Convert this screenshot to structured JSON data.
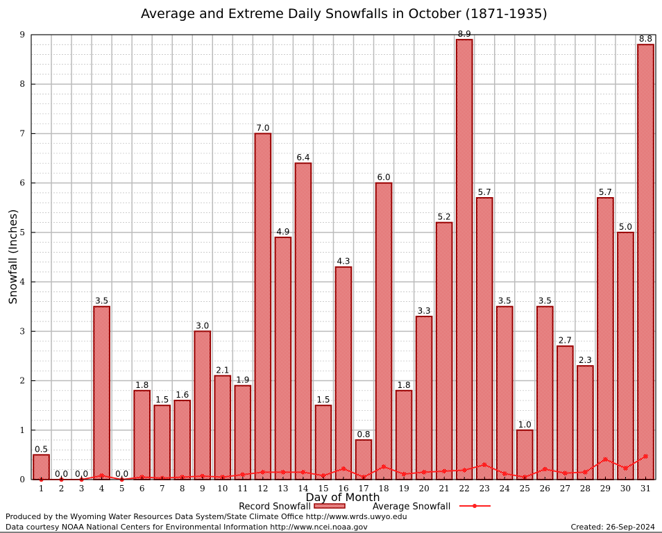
{
  "chart_data": {
    "type": "bar",
    "title": "Average and Extreme Daily Snowfalls in October (1871-1935)",
    "xlabel": "Day of Month",
    "ylabel": "Snowfall (Inches)",
    "ylim": [
      0,
      9
    ],
    "yticks": [
      "0",
      "1",
      "2",
      "3",
      "4",
      "5",
      "6",
      "7",
      "8",
      "9"
    ],
    "grid": true,
    "legend_position": "bottom",
    "categories": [
      "1",
      "2",
      "3",
      "4",
      "5",
      "6",
      "7",
      "8",
      "9",
      "10",
      "11",
      "12",
      "13",
      "14",
      "15",
      "16",
      "17",
      "18",
      "19",
      "20",
      "21",
      "22",
      "23",
      "24",
      "25",
      "26",
      "27",
      "28",
      "29",
      "30",
      "31"
    ],
    "series": [
      {
        "name": "Record Snowfall",
        "type": "bar",
        "color": "#cc0000",
        "values": [
          0.5,
          0.0,
          0.0,
          3.5,
          0.0,
          1.8,
          1.5,
          1.6,
          3.0,
          2.1,
          1.9,
          7.0,
          4.9,
          6.4,
          1.5,
          4.3,
          0.8,
          6.0,
          1.8,
          3.3,
          5.2,
          8.9,
          5.7,
          3.5,
          1.0,
          3.5,
          2.7,
          2.3,
          5.7,
          5.0,
          8.8
        ]
      },
      {
        "name": "Average Snowfall",
        "type": "line",
        "color": "#ff2020",
        "values": [
          0.0,
          0.0,
          0.0,
          0.08,
          0.0,
          0.05,
          0.03,
          0.05,
          0.07,
          0.05,
          0.1,
          0.15,
          0.15,
          0.15,
          0.08,
          0.22,
          0.05,
          0.26,
          0.11,
          0.15,
          0.17,
          0.19,
          0.3,
          0.12,
          0.05,
          0.21,
          0.13,
          0.15,
          0.41,
          0.23,
          0.47
        ]
      }
    ]
  },
  "footer": {
    "line1": "Produced by the Wyoming Water Resources Data System/State Climate Office http://www.wrds.uwyo.edu",
    "line2": "Data courtesy NOAA National Centers for Environmental Information http://www.ncei.noaa.gov",
    "created": "Created: 26-Sep-2024"
  }
}
